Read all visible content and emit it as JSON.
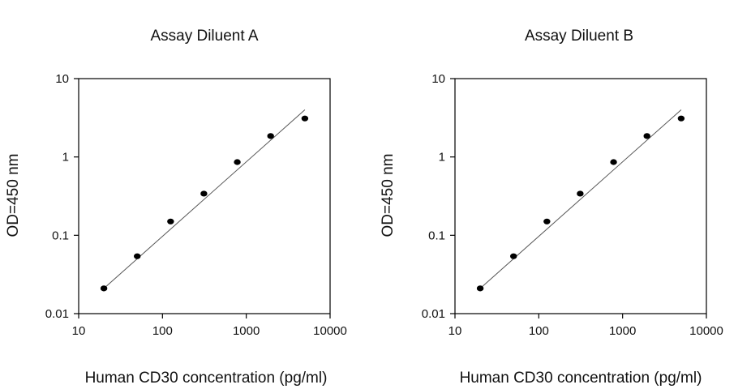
{
  "chart_data": [
    {
      "type": "scatter",
      "title": "Assay Diluent A",
      "xlabel": "Human CD30 concentration (pg/ml)",
      "ylabel": "OD=450 nm",
      "xscale": "log",
      "yscale": "log",
      "xlim": [
        10,
        10000
      ],
      "ylim": [
        0.01,
        10
      ],
      "xticks": [
        "10",
        "100",
        "1000",
        "10000"
      ],
      "yticks": [
        "0.01",
        "0.1",
        "1",
        "10"
      ],
      "grid": false,
      "series": [
        {
          "x": [
            20,
            50,
            125,
            312,
            781,
            1953,
            5000
          ],
          "y": [
            0.021,
            0.054,
            0.15,
            0.34,
            0.86,
            1.85,
            3.1
          ]
        }
      ],
      "fit_line": {
        "x": [
          20,
          5000
        ],
        "y": [
          0.021,
          4.0
        ]
      }
    },
    {
      "type": "scatter",
      "title": "Assay Diluent B",
      "xlabel": "Human CD30 concentration (pg/ml)",
      "ylabel": "OD=450 nm",
      "xscale": "log",
      "yscale": "log",
      "xlim": [
        10,
        10000
      ],
      "ylim": [
        0.01,
        10
      ],
      "xticks": [
        "10",
        "100",
        "1000",
        "10000"
      ],
      "yticks": [
        "0.01",
        "0.1",
        "1",
        "10"
      ],
      "grid": false,
      "series": [
        {
          "x": [
            20,
            50,
            125,
            312,
            781,
            1953,
            5000
          ],
          "y": [
            0.021,
            0.054,
            0.15,
            0.34,
            0.86,
            1.85,
            3.1
          ]
        }
      ],
      "fit_line": {
        "x": [
          20,
          5000
        ],
        "y": [
          0.021,
          4.0
        ]
      }
    }
  ]
}
